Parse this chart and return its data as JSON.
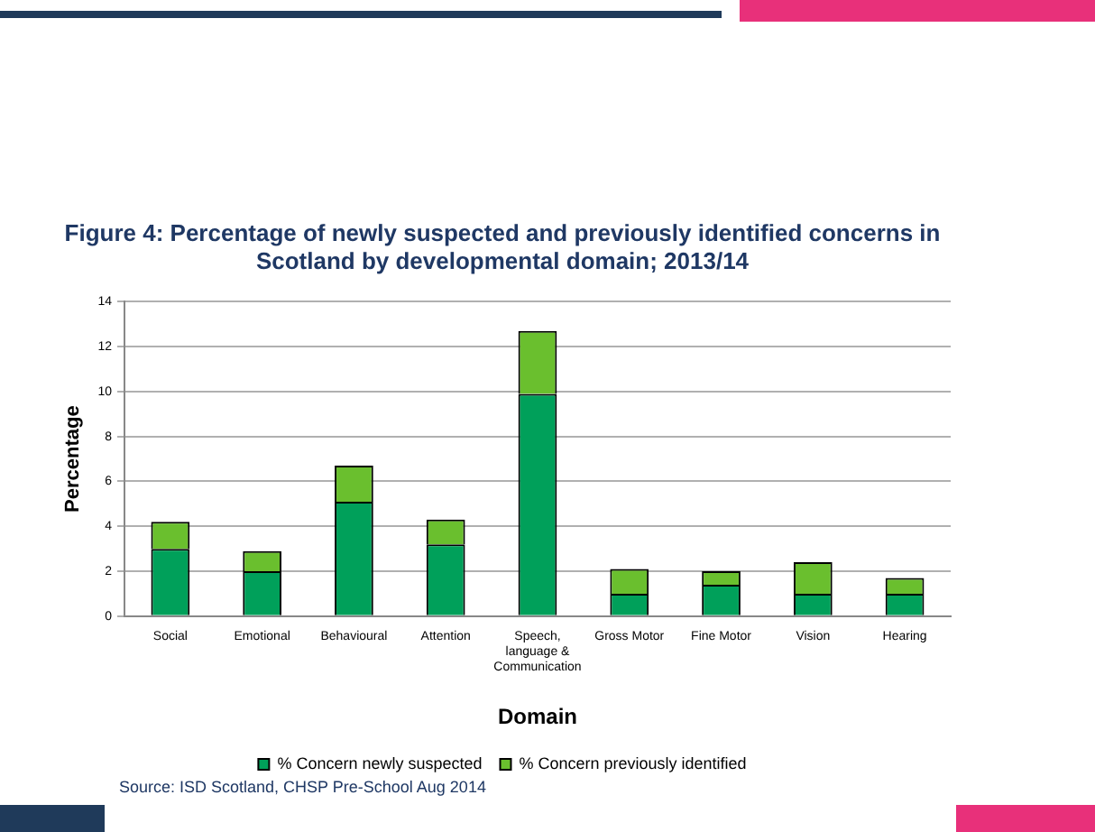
{
  "chart_data": {
    "type": "bar",
    "title": "Figure 4: Percentage of newly suspected and previously identified concerns in Scotland by developmental domain; 2013/14",
    "xlabel": "Domain",
    "ylabel": "Percentage",
    "categories": [
      "Social",
      "Emotional",
      "Behavioural",
      "Attention",
      "Speech, language & Communication",
      "Gross Motor",
      "Fine Motor",
      "Vision",
      "Hearing"
    ],
    "series": [
      {
        "name": "% Concern newly suspected",
        "color": "#00a05a",
        "values": [
          3.0,
          2.0,
          5.1,
          3.2,
          9.9,
          1.0,
          1.4,
          1.0,
          1.0
        ]
      },
      {
        "name": "% Concern previously identified",
        "color": "#6abf2e",
        "values": [
          1.2,
          0.9,
          1.6,
          1.1,
          2.8,
          1.1,
          0.6,
          1.4,
          0.7
        ]
      }
    ],
    "stacked": true,
    "ylim": [
      0,
      14
    ],
    "yticks": [
      0,
      2,
      4,
      6,
      8,
      10,
      12,
      14
    ],
    "grid": "y",
    "legend": "bottom",
    "annotations": [
      "Source: ISD Scotland, CHSP Pre-School Aug 2014"
    ]
  }
}
